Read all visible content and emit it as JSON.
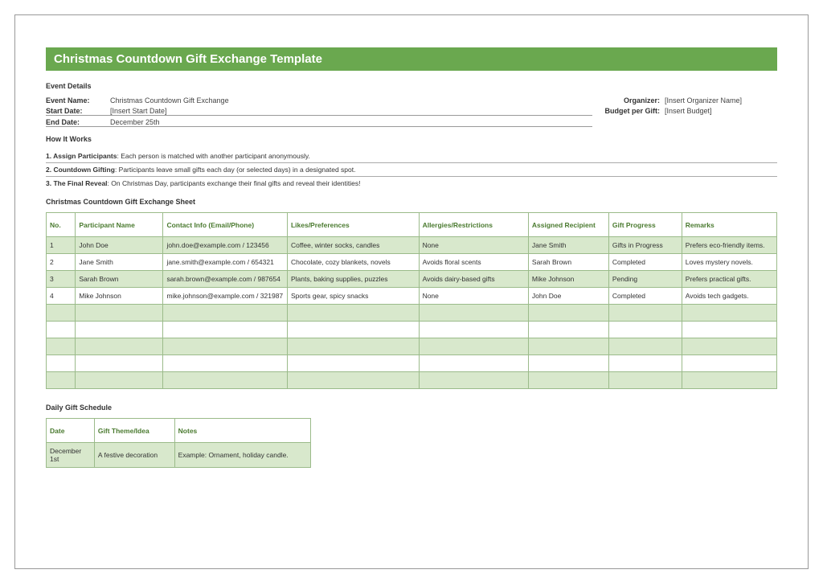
{
  "title": "Christmas Countdown Gift Exchange Template",
  "colors": {
    "header_bg": "#6aa84f",
    "header_text": "#ffffff",
    "th_text": "#4a7a2f",
    "row_odd_bg": "#d8e8cc",
    "row_even_bg": "#ffffff",
    "border": "#9bbb8a"
  },
  "sections": {
    "eventDetails": "Event Details",
    "howItWorks": "How It Works",
    "sheet": "Christmas Countdown Gift Exchange Sheet",
    "schedule": "Daily Gift Schedule"
  },
  "details": {
    "eventName": {
      "label": "Event Name:",
      "value": "Christmas Countdown Gift Exchange"
    },
    "startDate": {
      "label": "Start Date:",
      "value": "[Insert Start Date]"
    },
    "endDate": {
      "label": "End Date:",
      "value": "December 25th"
    },
    "organizer": {
      "label": "Organizer:",
      "value": "[Insert Organizer Name]"
    },
    "budget": {
      "label": "Budget per Gift:",
      "value": "[Insert Budget]"
    }
  },
  "how": [
    {
      "b": "1. Assign Participants",
      "t": ": Each person is matched with another participant anonymously."
    },
    {
      "b": "2. Countdown Gifting",
      "t": ": Participants leave small gifts each day (or selected days) in a designated spot."
    },
    {
      "b": "3. The Final Reveal",
      "t": ": On Christmas Day, participants exchange their final gifts and reveal their identities!"
    }
  ],
  "participants": {
    "headers": [
      "No.",
      "Participant Name",
      "Contact Info (Email/Phone)",
      "Likes/Preferences",
      "Allergies/Restrictions",
      "Assigned Recipient",
      "Gift Progress",
      "Remarks"
    ],
    "colWidths": [
      "4%",
      "12%",
      "17%",
      "18%",
      "15%",
      "11%",
      "10%",
      "13%"
    ],
    "rows": [
      [
        "1",
        "John Doe",
        "john.doe@example.com / 123456",
        "Coffee, winter socks, candles",
        "None",
        "Jane Smith",
        "Gifts in Progress",
        "Prefers eco-friendly items."
      ],
      [
        "2",
        "Jane Smith",
        "jane.smith@example.com / 654321",
        "Chocolate, cozy blankets, novels",
        "Avoids floral scents",
        "Sarah Brown",
        "Completed",
        "Loves mystery novels."
      ],
      [
        "3",
        "Sarah Brown",
        "sarah.brown@example.com / 987654",
        "Plants, baking supplies, puzzles",
        "Avoids dairy-based gifts",
        "Mike Johnson",
        "Pending",
        "Prefers practical gifts."
      ],
      [
        "4",
        "Mike Johnson",
        "mike.johnson@example.com / 321987",
        "Sports gear, spicy snacks",
        "None",
        "John Doe",
        "Completed",
        "Avoids tech gadgets."
      ]
    ],
    "emptyRows": 5
  },
  "schedule": {
    "headers": [
      "Date",
      "Gift Theme/Idea",
      "Notes"
    ],
    "colWidths": [
      "60px",
      "100px",
      "170px"
    ],
    "rows": [
      [
        "December 1st",
        "A festive decoration",
        "Example: Ornament, holiday candle."
      ]
    ]
  }
}
